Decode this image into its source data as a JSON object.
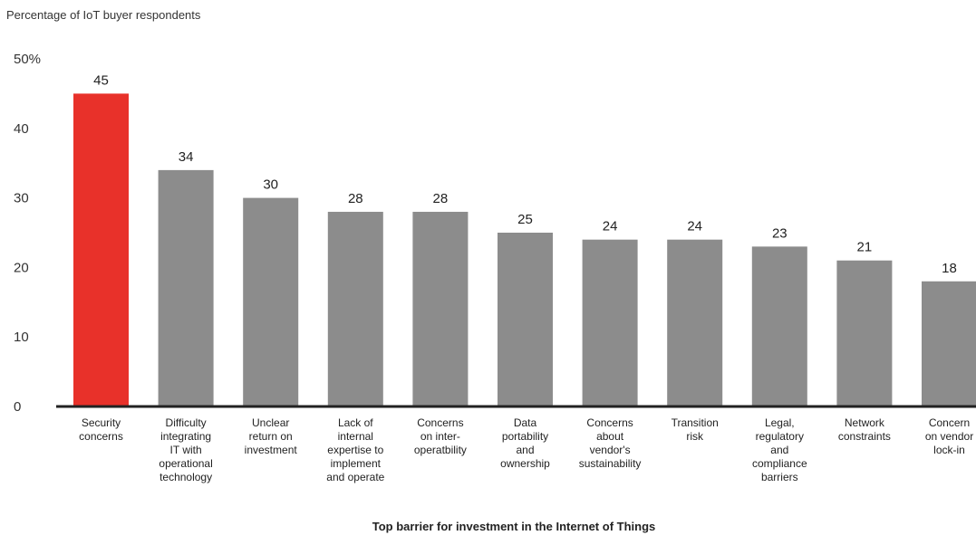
{
  "chart_data": {
    "type": "bar",
    "y_axis_title": "Percentage of IoT buyer respondents",
    "x_axis_title": "Top barrier for investment in the Internet of Things",
    "ylim": [
      0,
      50
    ],
    "y_ticks": [
      {
        "value": 0,
        "label": "0"
      },
      {
        "value": 10,
        "label": "10"
      },
      {
        "value": 20,
        "label": "20"
      },
      {
        "value": 30,
        "label": "30"
      },
      {
        "value": 40,
        "label": "40"
      },
      {
        "value": 50,
        "label": "50%"
      }
    ],
    "grid": false,
    "legend": "none",
    "colors": {
      "highlight": "#e8312a",
      "default": "#8c8c8c",
      "axis": "#222222"
    },
    "categories": [
      "Security concerns",
      "Difficulty integrating IT with operational technology",
      "Unclear return on investment",
      "Lack of internal expertise to implement and operate",
      "Concerns on inter-operatbility",
      "Data portability and ownership",
      "Concerns about vendor's sustainability",
      "Transition risk",
      "Legal, regulatory and compliance barriers",
      "Network constraints",
      "Concern on vendor lock-in"
    ],
    "category_label_lines": [
      [
        "Security",
        "concerns"
      ],
      [
        "Difficulty",
        "integrating",
        "IT with",
        "operational",
        "technology"
      ],
      [
        "Unclear",
        "return on",
        "investment"
      ],
      [
        "Lack of",
        "internal",
        "expertise to",
        "implement",
        "and operate"
      ],
      [
        "Concerns",
        "on inter-",
        "operatbility"
      ],
      [
        "Data",
        "portability",
        "and",
        "ownership"
      ],
      [
        "Concerns",
        "about",
        "vendor's",
        "sustainability"
      ],
      [
        "Transition",
        "risk"
      ],
      [
        "Legal,",
        "regulatory",
        "and",
        "compliance",
        "barriers"
      ],
      [
        "Network",
        "constraints"
      ],
      [
        "Concern",
        "on vendor",
        "lock-in"
      ]
    ],
    "values": [
      45,
      34,
      30,
      28,
      28,
      25,
      24,
      24,
      23,
      21,
      18
    ],
    "highlight_index": 0
  }
}
